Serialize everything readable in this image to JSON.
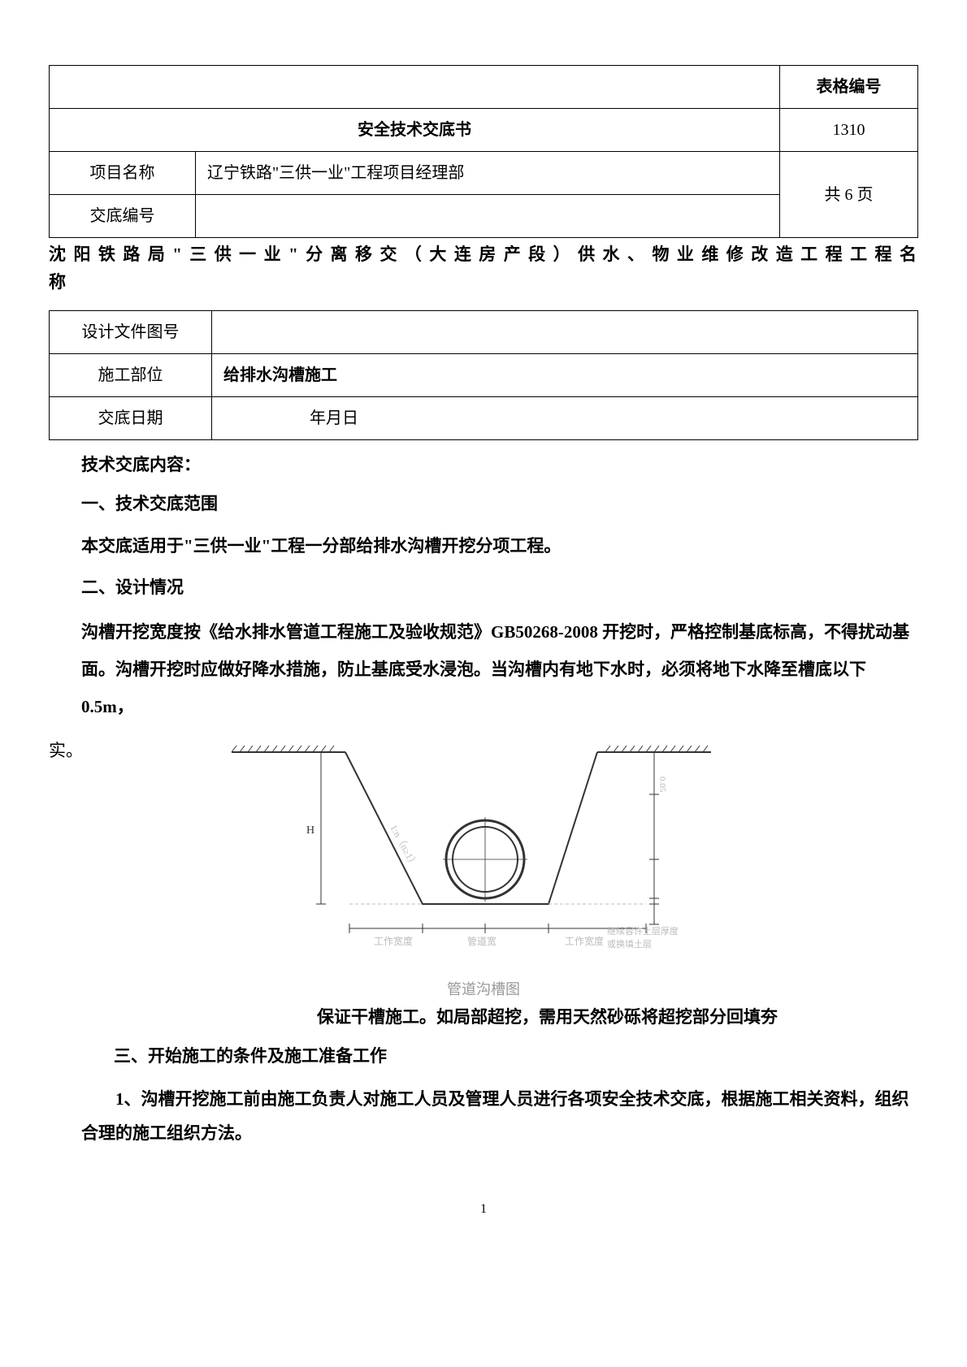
{
  "table1": {
    "header_right": "表格编号",
    "title": "安全技术交底书",
    "form_no": "1310",
    "row_project_label": "项目名称",
    "row_project_value": "辽宁铁路\"三供一业\"工程项目经理部",
    "row_pages": "共 6 页",
    "row_code_label": "交底编号",
    "row_code_value": ""
  },
  "long_title": "沈 阳 铁 路 局 \" 三 供 一 业 \" 分 离 移 交 （ 大 连 房 产 段 ）  供 水 、 物 业 维 修 改 造 工 程 工 程 名 称",
  "table2": {
    "row_design_label": "设计文件图号",
    "row_design_value": "",
    "row_part_label": "施工部位",
    "row_part_value": "给排水沟槽施工",
    "row_date_label": "交底日期",
    "row_date_value": "年月日"
  },
  "content": {
    "heading": "技术交底内容：",
    "s1_title": "一、技术交底范围",
    "s1_para": "本交底适用于\"三供一业\"工程一分部给排水沟槽开挖分项工程。",
    "s2_title": "二、设计情况",
    "s2_para": "沟槽开挖宽度按《给水排水管道工程施工及验收规范》GB50268-2008 开挖时，严格控制基底标高，不得扰动基面。沟槽开挖时应做好降水措施，防止基底受水浸泡。当沟槽内有地下水时，必须将地下水降至槽底以下 0.5m，",
    "s2_tail_left": "实。",
    "after_fig": "保证干槽施工。如局部超挖，需用天然砂砾将超挖部分回填夯",
    "s3_title": "三、开始施工的条件及施工准备工作",
    "s3_para": "1、沟槽开挖施工前由施工负责人对施工人员及管理人员进行各项安全技术交底，根据施工相关资料，组织合理的施工组织方法。"
  },
  "diagram": {
    "caption": "管道沟槽图",
    "label_left": "H",
    "slope_label": "1:n（n≥1）",
    "bottom_labels": [
      "工作宽度",
      "管道宽",
      "工作宽度"
    ],
    "right_dim_top": "0.05",
    "right_note_1": "继续容许土层厚度",
    "right_note_2": "或换填土层",
    "colors": {
      "stroke": "#333333",
      "faint": "#bbbbbb",
      "hatch": "#555555"
    }
  },
  "page_number": "1"
}
